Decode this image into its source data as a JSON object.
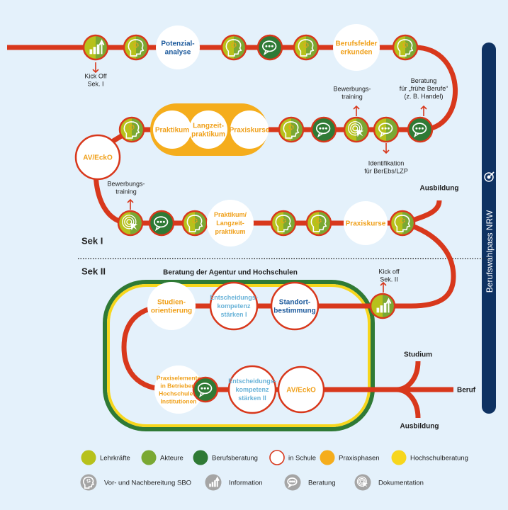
{
  "colors": {
    "background": "#e4f1fb",
    "track": "#d8381c",
    "lehrkraefte": "#b7c11b",
    "akteure": "#7aa833",
    "berufsberatung": "#2f7a35",
    "praxisphasen": "#f5ad1c",
    "hochschulberatung": "#f7d61c",
    "sidebar": "#0e3262",
    "text_blue": "#1d5a9c",
    "text_orange": "#f0a01a",
    "text_lightblue": "#6ab3d8",
    "text_dark": "#222222",
    "icon_grey": "#a5a5a5"
  },
  "nodes": [
    {
      "kind": "info",
      "name": "kick-off-sek-i"
    },
    {
      "kind": "head"
    },
    {
      "kind": "circle",
      "label": [
        "Potenzial-",
        "analyse"
      ],
      "color": "blue"
    },
    {
      "kind": "head"
    },
    {
      "kind": "chat"
    },
    {
      "kind": "head"
    },
    {
      "kind": "circle",
      "label": [
        "Berufsfelder",
        "erkunden"
      ],
      "color": "orange"
    },
    {
      "kind": "head"
    },
    {
      "kind": "chat"
    },
    {
      "kind": "chat-lime"
    },
    {
      "kind": "doku"
    },
    {
      "kind": "chat"
    },
    {
      "kind": "head"
    },
    {
      "kind": "pill-circle",
      "label": [
        "Praxiskurse"
      ],
      "color": "orange"
    },
    {
      "kind": "pill-circle",
      "label": [
        "Langzeit-",
        "praktikum"
      ],
      "color": "orange"
    },
    {
      "kind": "pill-circle",
      "label": [
        "Praktikum"
      ],
      "color": "orange"
    },
    {
      "kind": "head"
    },
    {
      "kind": "ring",
      "label": [
        "AV/EckO"
      ],
      "color": "orange"
    },
    {
      "kind": "doku"
    },
    {
      "kind": "chat"
    },
    {
      "kind": "head"
    },
    {
      "kind": "circle",
      "label": [
        "Praktikum/",
        "Langzeit-",
        "praktikum"
      ],
      "color": "orange"
    },
    {
      "kind": "head"
    },
    {
      "kind": "head"
    },
    {
      "kind": "circle",
      "label": [
        "Praxiskurse"
      ],
      "color": "orange"
    },
    {
      "kind": "head"
    },
    {
      "kind": "info",
      "name": "kick-off-sek-ii"
    },
    {
      "kind": "ring",
      "label": [
        "Standort-",
        "bestimmung"
      ],
      "color": "blue"
    },
    {
      "kind": "ring",
      "label": [
        "Entscheidungs-",
        "kompetenz",
        "stärken I"
      ],
      "color": "lightblue"
    },
    {
      "kind": "circle",
      "label": [
        "Studien-",
        "orientierung"
      ],
      "color": "orange"
    },
    {
      "kind": "circle",
      "label": [
        "Praxiselemente",
        "in Betrieben,",
        "Hochschulen,",
        "Institutionen"
      ],
      "color": "orange"
    },
    {
      "kind": "chat"
    },
    {
      "kind": "ring",
      "label": [
        "Entscheidungs-",
        "kompetenz",
        "stärken II"
      ],
      "color": "lightblue"
    },
    {
      "kind": "ring",
      "label": [
        "AV/EckO"
      ],
      "color": "orange"
    }
  ],
  "annotations": [
    {
      "lines": [
        "Kick Off",
        "Sek. I"
      ],
      "arrow": "down"
    },
    {
      "lines": [
        "Bewerbungs-",
        "training"
      ],
      "arrow": "up"
    },
    {
      "lines": [
        "Beratung",
        "für „frühe Berufe“",
        "(z. B. Handel)"
      ],
      "arrow": "up"
    },
    {
      "lines": [
        "Identifikation",
        "für BerEbs/LZP"
      ],
      "arrow": "down"
    },
    {
      "lines": [
        "Bewerbungs-",
        "training"
      ],
      "arrow": "up"
    },
    {
      "lines": [
        "Kick off",
        "Sek. II"
      ],
      "arrow": "up"
    }
  ],
  "outcomes": {
    "ausbildung_sek1": "Ausbildung",
    "studium": "Studium",
    "beruf": "Beruf",
    "ausbildung_sek2": "Ausbildung"
  },
  "sections": {
    "sek1": "Sek I",
    "sek2": "Sek II",
    "box_title": "Beratung der Agentur und Hochschulen"
  },
  "sidebar": {
    "title": "Berufswahlpass NRW"
  },
  "legend": {
    "colors": [
      {
        "label": "Lehrkräfte",
        "swatch": "lehrkraefte"
      },
      {
        "label": "Akteure",
        "swatch": "akteure"
      },
      {
        "label": "Berufsberatung",
        "swatch": "berufsberatung"
      },
      {
        "label": "in Schule",
        "swatch": "ring"
      },
      {
        "label": "Praxisphasen",
        "swatch": "praxisphasen"
      },
      {
        "label": "Hochschulberatung",
        "swatch": "hochschulberatung"
      }
    ],
    "icons": [
      {
        "label": "Vor- und Nachbereitung SBO",
        "icon": "head-gear-icon"
      },
      {
        "label": "Information",
        "icon": "chart-arrow-icon"
      },
      {
        "label": "Beratung",
        "icon": "chat-bubbles-icon"
      },
      {
        "label": "Dokumentation",
        "icon": "target-cursor-icon"
      }
    ]
  }
}
